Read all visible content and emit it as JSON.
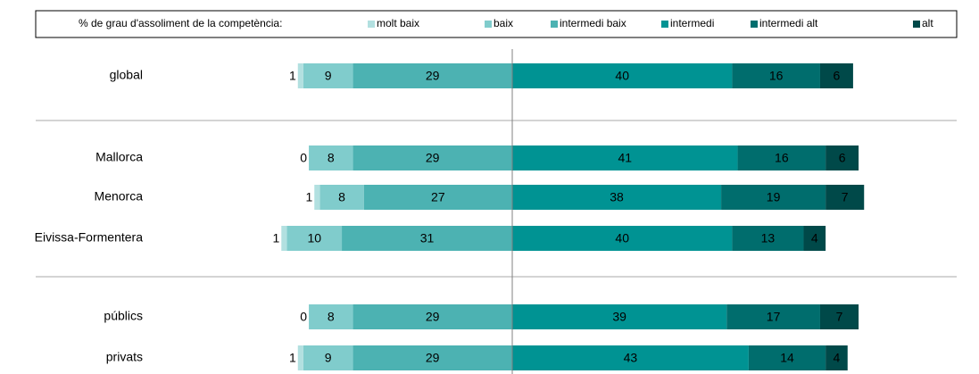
{
  "chart_data": {
    "type": "diverging_bar",
    "legend_title": "% de grau d'assoliment de la competència:",
    "legend_position": "top",
    "categories": [
      "global",
      "Mallorca",
      "Menorca",
      "Eivissa-Formentera",
      "públics",
      "privats"
    ],
    "series": [
      {
        "name": "molt baix",
        "color": "#b2e0e0",
        "side": "left",
        "values": [
          1,
          0,
          1,
          1,
          0,
          1
        ]
      },
      {
        "name": "baix",
        "color": "#80cccc",
        "side": "left",
        "values": [
          9,
          8,
          8,
          10,
          8,
          9
        ]
      },
      {
        "name": "intermedi baix",
        "color": "#4cb2b2",
        "side": "left",
        "values": [
          29,
          29,
          27,
          31,
          29,
          29
        ]
      },
      {
        "name": "intermedi",
        "color": "#009393",
        "side": "right",
        "values": [
          40,
          41,
          38,
          40,
          39,
          43
        ]
      },
      {
        "name": "intermedi alt",
        "color": "#006d6d",
        "side": "right",
        "values": [
          16,
          16,
          19,
          13,
          17,
          14
        ]
      },
      {
        "name": "alt",
        "color": "#004949",
        "side": "right",
        "values": [
          6,
          6,
          7,
          4,
          7,
          4
        ]
      }
    ]
  }
}
